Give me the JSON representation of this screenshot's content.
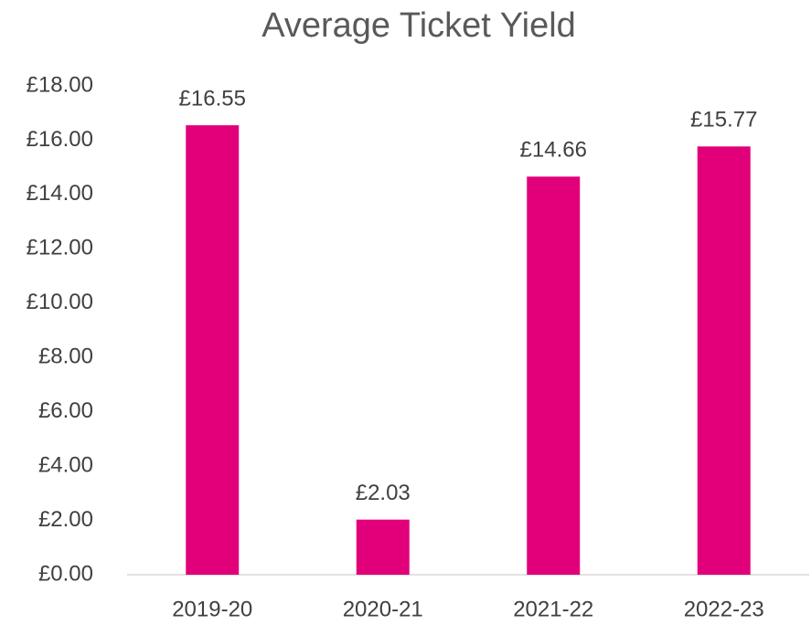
{
  "chart_data": {
    "type": "bar",
    "title": "Average Ticket Yield",
    "categories": [
      "2019-20",
      "2020-21",
      "2021-22",
      "2022-23"
    ],
    "values": [
      16.55,
      2.03,
      14.66,
      15.77
    ],
    "value_labels": [
      "£16.55",
      "£2.03",
      "£14.66",
      "£15.77"
    ],
    "color": "#e2007a",
    "ylim": [
      0,
      18
    ],
    "yticks": [
      {
        "value": 0,
        "label": "£0.00"
      },
      {
        "value": 2,
        "label": "£2.00"
      },
      {
        "value": 4,
        "label": "£4.00"
      },
      {
        "value": 6,
        "label": "£6.00"
      },
      {
        "value": 8,
        "label": "£8.00"
      },
      {
        "value": 10,
        "label": "£10.00"
      },
      {
        "value": 12,
        "label": "£12.00"
      },
      {
        "value": 14,
        "label": "£14.00"
      },
      {
        "value": 16,
        "label": "£16.00"
      },
      {
        "value": 18,
        "label": "£18.00"
      }
    ],
    "grid": false
  }
}
